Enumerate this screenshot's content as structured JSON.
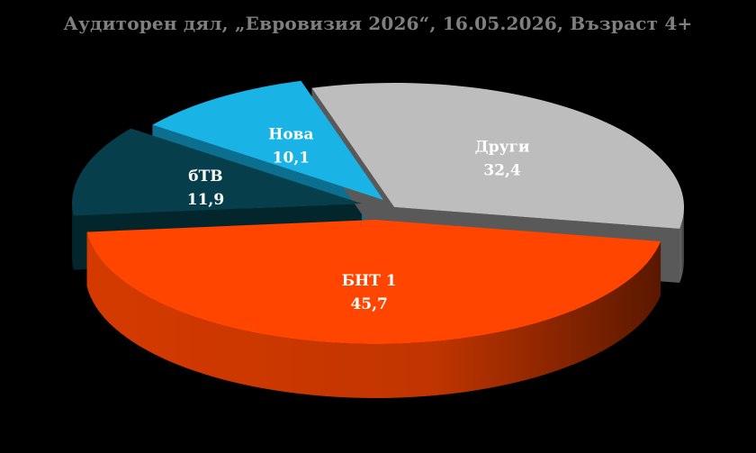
{
  "chart_data": {
    "type": "pie",
    "style": "3d-exploded",
    "title": "Аудиторен дял, „Евровизия 2026“, 16.05.2026, Възраст 4+",
    "slices": [
      {
        "name": "БНТ 1",
        "value": 45.7,
        "value_label": "45,7",
        "color": "#ff4500"
      },
      {
        "name": "Други",
        "value": 32.4,
        "value_label": "32,4",
        "color": "#bdbdbd"
      },
      {
        "name": "Нова",
        "value": 10.1,
        "value_label": "10,1",
        "color": "#19b3e6"
      },
      {
        "name": "бТВ",
        "value": 11.9,
        "value_label": "11,9",
        "color": "#063f4b"
      }
    ]
  }
}
